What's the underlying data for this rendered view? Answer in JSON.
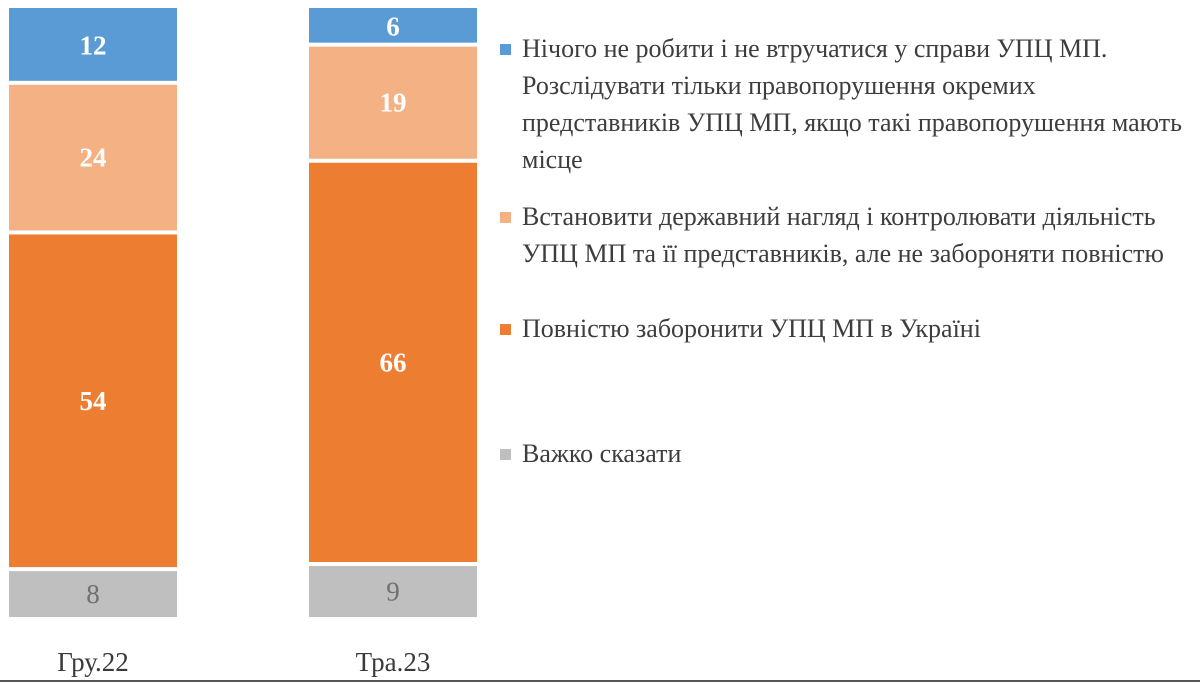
{
  "chart_data": {
    "type": "bar",
    "stacked": true,
    "categories": [
      "Гру.22",
      "Тра.23"
    ],
    "series": [
      {
        "name": "Нічого не робити і не втручатися у справи УПЦ МП. Розслідувати тільки правопорушення окремих представників УПЦ МП, якщо такі правопорушення мають місце",
        "values": [
          12,
          6
        ],
        "color": "#5b9bd5"
      },
      {
        "name": "Встановити державний нагляд і контролювати діяльність УПЦ МП та її представників, але не забороняти повністю",
        "values": [
          24,
          19
        ],
        "color": "#f4b183"
      },
      {
        "name": "Повністю заборонити УПЦ МП в Україні",
        "values": [
          54,
          66
        ],
        "color": "#ed7d31"
      },
      {
        "name": "Важко сказати",
        "values": [
          8,
          9
        ],
        "color": "#bfbfbf"
      }
    ],
    "data_labels": true,
    "legend": "right"
  }
}
